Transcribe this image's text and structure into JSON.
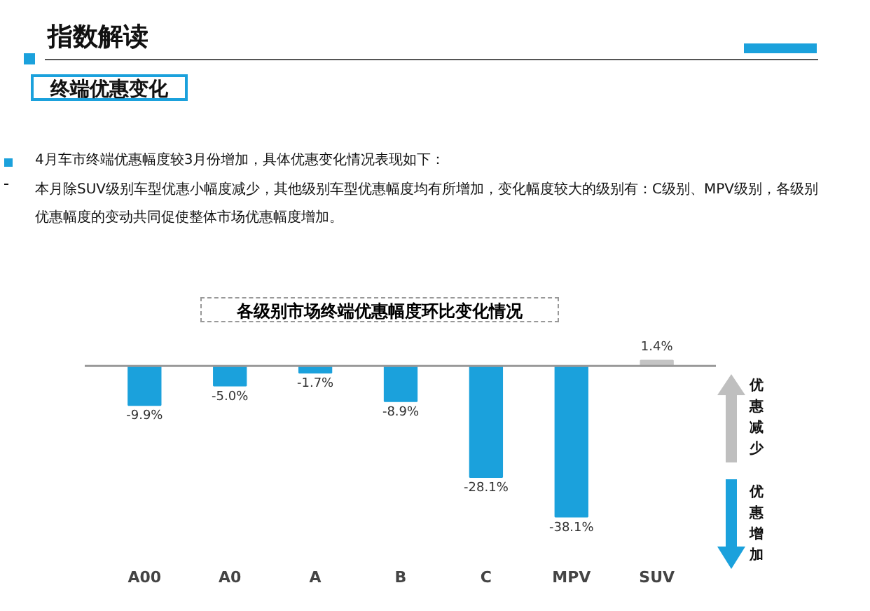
{
  "chart_data": {
    "type": "bar",
    "title": "各级别市场终端优惠幅度环比变化情况",
    "categories": [
      "A00",
      "A0",
      "A",
      "B",
      "C",
      "MPV",
      "SUV"
    ],
    "values": [
      -9.9,
      -5.0,
      -1.7,
      -8.9,
      -28.1,
      -38.1,
      1.4
    ],
    "colors": [
      "#1ba1dc",
      "#1ba1dc",
      "#1ba1dc",
      "#1ba1dc",
      "#1ba1dc",
      "#1ba1dc",
      "#c4c4c4"
    ],
    "value_labels": [
      "-9.9%",
      "-5.0%",
      "-1.7%",
      "-8.9%",
      "-28.1%",
      "-38.1%",
      "1.4%"
    ],
    "annotations": [
      "指数解读",
      "终端优惠变化",
      "4月车市终端优惠幅度较3月份增加，具体优惠变化情况表现如下：",
      "本月除SUV级别车型优惠小幅度减少，其他级别车型优惠幅度均有所增加，变化幅度较大的级别有：C级别、MPV级别，各级别优惠幅度的变动共同促使整体市场优惠幅度增加。",
      "优惠减少",
      "优惠增加"
    ]
  }
}
